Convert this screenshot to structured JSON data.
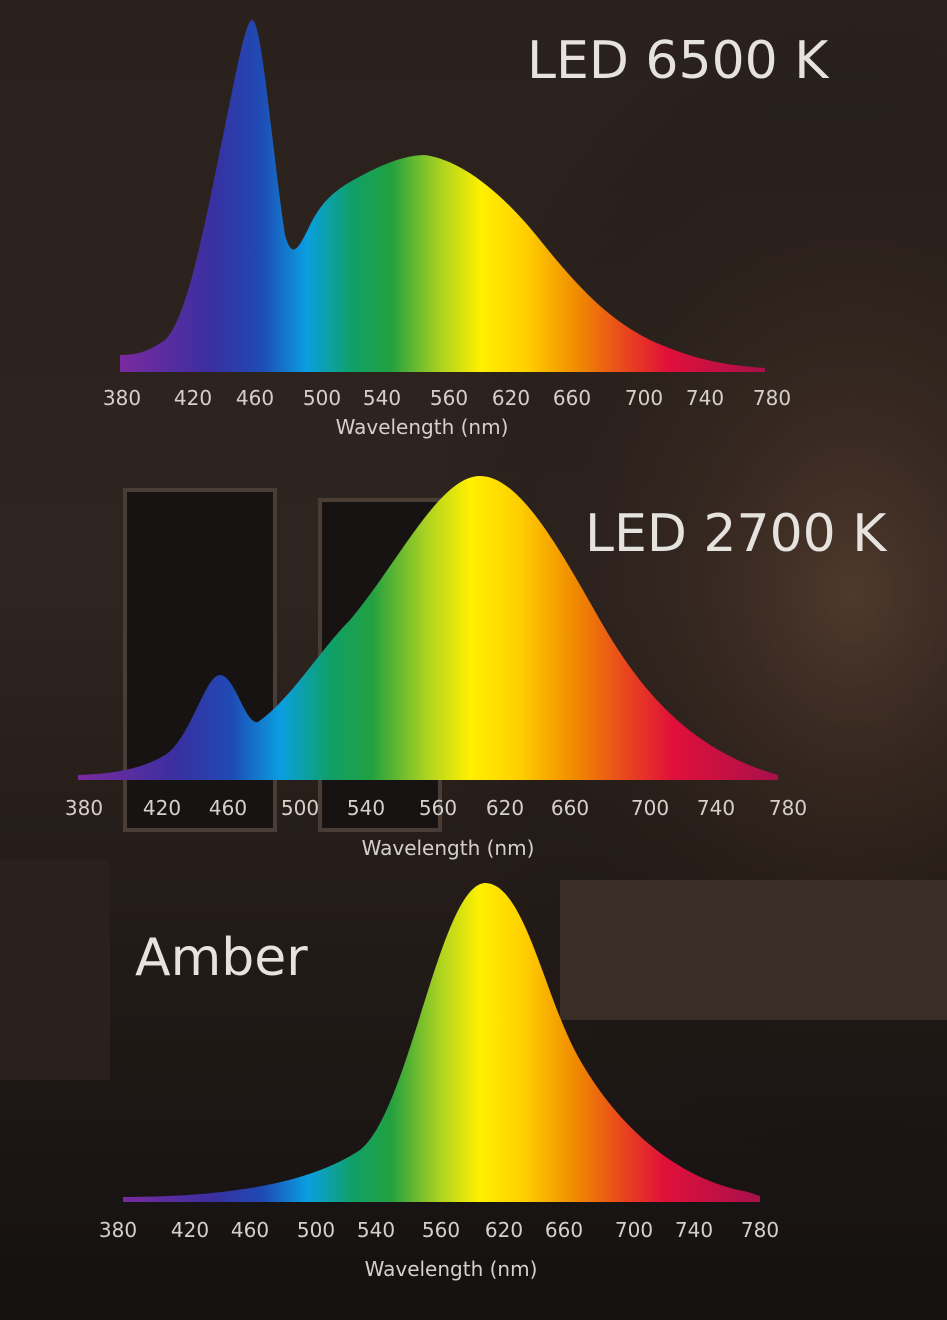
{
  "panels": [
    {
      "title": "LED 6500 K",
      "ticks": [
        "380",
        "420",
        "460",
        "500",
        "540",
        "560",
        "620",
        "660",
        "700",
        "740",
        "780"
      ],
      "axis_label": "Wavelength (nm)"
    },
    {
      "title": "LED 2700 K",
      "ticks": [
        "380",
        "420",
        "460",
        "500",
        "540",
        "560",
        "620",
        "660",
        "700",
        "740",
        "780"
      ],
      "axis_label": "Wavelength (nm)"
    },
    {
      "title": "Amber",
      "ticks": [
        "380",
        "420",
        "460",
        "500",
        "540",
        "560",
        "620",
        "660",
        "700",
        "740",
        "780"
      ],
      "axis_label": "Wavelength (nm)"
    }
  ]
}
